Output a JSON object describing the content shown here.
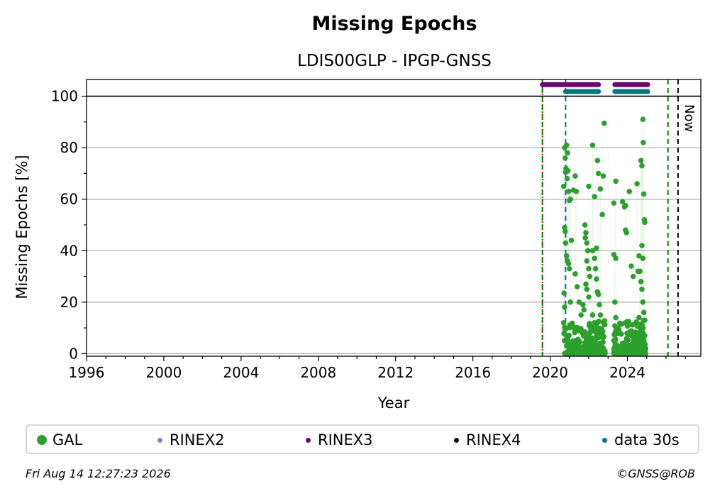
{
  "chart_data": {
    "type": "scatter",
    "title": "Missing Epochs",
    "subtitle": "LDIS00GLP - IPGP-GNSS",
    "xlabel": "Year",
    "ylabel": "Missing Epochs [%]",
    "xlim": [
      1996,
      2027.8
    ],
    "ylim": [
      -1,
      106.5
    ],
    "x_ticks": [
      "1996",
      "2000",
      "2004",
      "2008",
      "2012",
      "2016",
      "2020",
      "2024"
    ],
    "y_ticks": [
      "0",
      "20",
      "40",
      "60",
      "80",
      "100"
    ],
    "grid": "y",
    "now_label": "Now",
    "reference_line_y": 100,
    "vlines": [
      {
        "x": 2019.6,
        "color": "#cc0000",
        "style": "dotted"
      },
      {
        "x": 2019.6,
        "color": "#008000",
        "style": "dashed"
      },
      {
        "x": 2020.8,
        "color": "#1f5fbf",
        "style": "dashed"
      },
      {
        "x": 2026.1,
        "color": "#008000",
        "style": "dashed"
      },
      {
        "x": 2026.62,
        "color": "#000000",
        "style": "dashed"
      }
    ],
    "bands": [
      {
        "name": "RINEX3",
        "y": 104.5,
        "color": "#6a0a6a",
        "ranges": [
          [
            2019.6,
            2022.5
          ],
          [
            2023.35,
            2025.05
          ]
        ]
      },
      {
        "name": "data 30s",
        "y": 101.8,
        "color": "#00787a",
        "ranges": [
          [
            2020.8,
            2022.5
          ],
          [
            2023.35,
            2025.05
          ]
        ]
      }
    ],
    "series": [
      {
        "name": "GAL",
        "color": "#2ca02c",
        "points": [
          [
            2020.7,
            65
          ],
          [
            2020.75,
            80
          ],
          [
            2020.78,
            76
          ],
          [
            2020.8,
            70.5
          ],
          [
            2020.82,
            72
          ],
          [
            2020.85,
            81
          ],
          [
            2020.88,
            68
          ],
          [
            2020.9,
            78
          ],
          [
            2020.92,
            71
          ],
          [
            2020.95,
            63
          ],
          [
            2021.0,
            59.5
          ],
          [
            2021.05,
            60
          ],
          [
            2021.2,
            63.5
          ],
          [
            2021.3,
            69
          ],
          [
            2021.35,
            63
          ],
          [
            2020.75,
            49
          ],
          [
            2020.78,
            47.5
          ],
          [
            2020.8,
            43
          ],
          [
            2020.85,
            38
          ],
          [
            2020.9,
            36
          ],
          [
            2020.95,
            35
          ],
          [
            2021.0,
            33
          ],
          [
            2021.05,
            20
          ],
          [
            2020.72,
            23.5
          ],
          [
            2020.75,
            18
          ],
          [
            2020.7,
            12
          ],
          [
            2020.72,
            8
          ],
          [
            2020.74,
            5
          ],
          [
            2021.1,
            44
          ],
          [
            2021.3,
            31
          ],
          [
            2021.4,
            26
          ],
          [
            2021.5,
            20
          ],
          [
            2021.6,
            15
          ],
          [
            2021.8,
            50
          ],
          [
            2021.85,
            47
          ],
          [
            2021.82,
            45
          ],
          [
            2021.9,
            43
          ],
          [
            2021.95,
            40
          ],
          [
            2021.9,
            36
          ],
          [
            2022.0,
            33
          ],
          [
            2022.05,
            30
          ],
          [
            2021.85,
            27
          ],
          [
            2021.9,
            25
          ],
          [
            2022.0,
            22
          ],
          [
            2021.7,
            19
          ],
          [
            2021.75,
            17
          ],
          [
            2022.0,
            65
          ],
          [
            2022.2,
            40
          ],
          [
            2022.3,
            37
          ],
          [
            2022.35,
            33
          ],
          [
            2022.4,
            29
          ],
          [
            2022.45,
            24
          ],
          [
            2022.2,
            81
          ],
          [
            2022.3,
            61
          ],
          [
            2022.4,
            41
          ],
          [
            2022.45,
            75
          ],
          [
            2022.5,
            70
          ],
          [
            2022.6,
            64
          ],
          [
            2022.5,
            23
          ],
          [
            2022.6,
            15
          ],
          [
            2022.7,
            54
          ],
          [
            2022.75,
            69
          ],
          [
            2022.8,
            89.5
          ],
          [
            2022.2,
            15
          ],
          [
            2022.3,
            12
          ],
          [
            2022.35,
            9
          ],
          [
            2022.55,
            19
          ],
          [
            2023.3,
            58.5
          ],
          [
            2023.4,
            67
          ],
          [
            2023.3,
            38.5
          ],
          [
            2023.4,
            37
          ],
          [
            2023.35,
            20
          ],
          [
            2023.4,
            14
          ],
          [
            2023.4,
            9
          ],
          [
            2023.9,
            48
          ],
          [
            2023.95,
            47
          ],
          [
            2023.85,
            57
          ],
          [
            2023.9,
            57.5
          ],
          [
            2023.75,
            59
          ],
          [
            2024.1,
            63
          ],
          [
            2024.2,
            34
          ],
          [
            2024.3,
            30
          ],
          [
            2024.4,
            5
          ],
          [
            2024.5,
            66
          ],
          [
            2024.55,
            32
          ],
          [
            2024.6,
            38
          ],
          [
            2024.65,
            32
          ],
          [
            2024.7,
            75
          ],
          [
            2024.75,
            73
          ],
          [
            2024.8,
            91
          ],
          [
            2024.82,
            82
          ],
          [
            2024.85,
            62
          ],
          [
            2024.88,
            52
          ],
          [
            2024.9,
            51
          ],
          [
            2024.75,
            42
          ],
          [
            2024.8,
            37
          ],
          [
            2024.7,
            28
          ],
          [
            2024.75,
            25
          ],
          [
            2024.8,
            20
          ],
          [
            2024.85,
            16
          ],
          [
            2024.9,
            13
          ],
          [
            2024.9,
            7
          ],
          [
            2024.6,
            14
          ],
          [
            2024.65,
            10
          ]
        ]
      }
    ],
    "legend": {
      "position": "bottom",
      "items": [
        {
          "label": "GAL",
          "color": "#2ca02c"
        },
        {
          "label": "RINEX2",
          "color": "#8a7bc0"
        },
        {
          "label": "RINEX3",
          "color": "#6a0a6a"
        },
        {
          "label": "RINEX4",
          "color": "#1a0410"
        },
        {
          "label": "data 30s",
          "color": "#00787a"
        }
      ]
    }
  },
  "footer": {
    "timestamp": "Fri Aug 14 12:27:23 2026",
    "copyright": "©GNSS@ROB"
  }
}
